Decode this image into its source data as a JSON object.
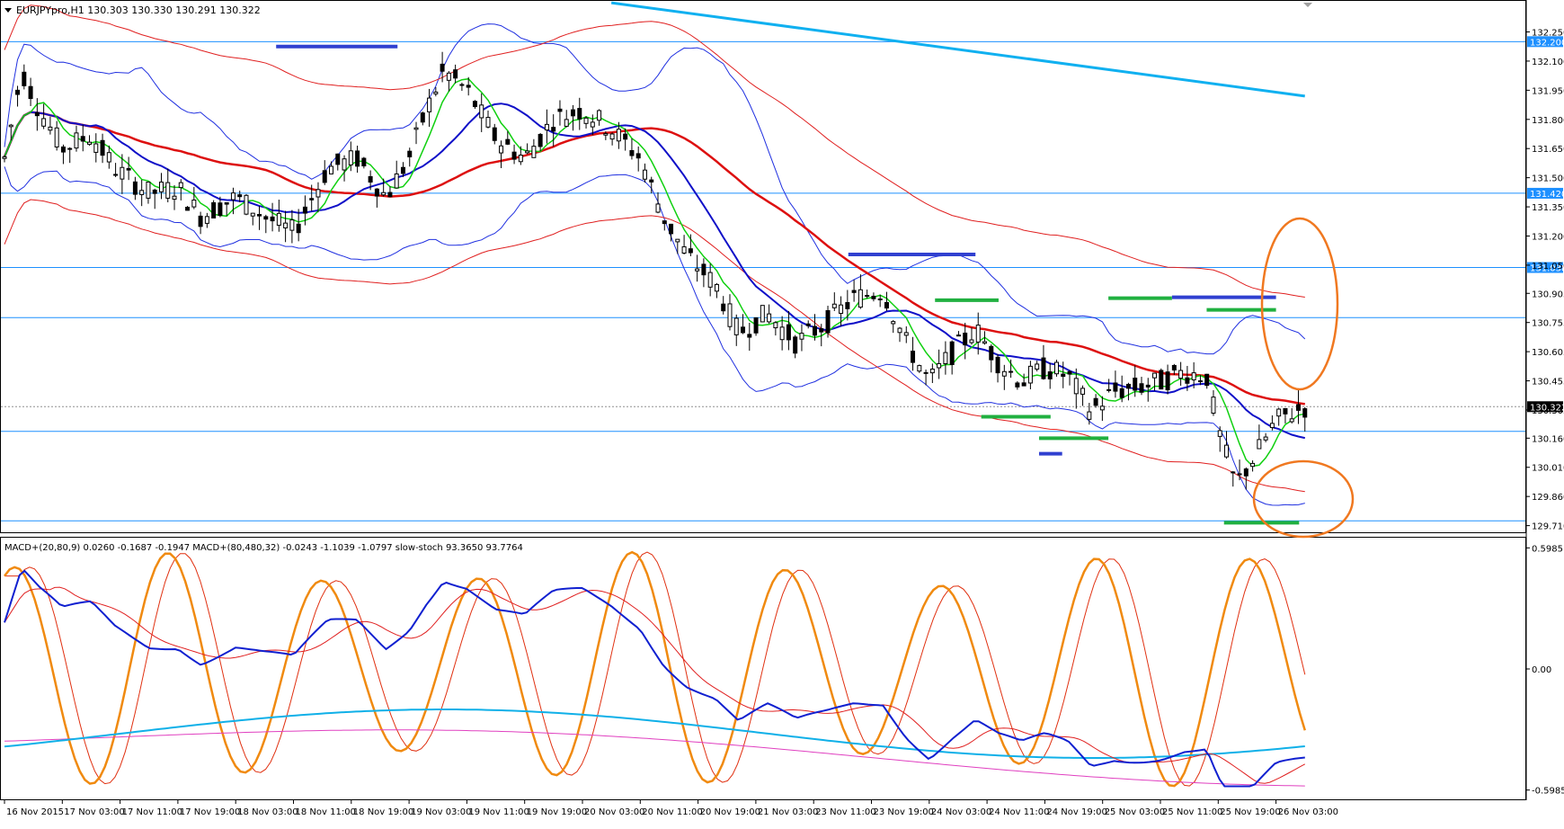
{
  "main_panel": {
    "header": "EURJPYpro,H1  130.303 130.330 130.291 130.322",
    "price_ticks": [
      "132.250",
      "132.100",
      "131.950",
      "131.800",
      "131.650",
      "131.500",
      "131.350",
      "131.200",
      "131.050",
      "130.905",
      "130.755",
      "130.605",
      "130.455",
      "130.305",
      "130.160",
      "130.010",
      "129.860",
      "129.710"
    ],
    "level_labels": [
      {
        "price": 132.2,
        "label": "132.200",
        "highlight": true
      },
      {
        "price": 131.42,
        "label": "131.420",
        "highlight": true
      },
      {
        "price": 131.038,
        "label": "131.038",
        "highlight": true
      },
      {
        "price": 130.78,
        "label": "",
        "highlight": false
      },
      {
        "price": 130.195,
        "label": "",
        "highlight": false
      },
      {
        "price": 129.735,
        "label": "",
        "highlight": false
      }
    ],
    "current_price": {
      "price": 130.322,
      "label": "130.322"
    }
  },
  "sub_panel": {
    "header": "MACD+(20,80,9) 0.0260 -0.1687 -0.1947   MACD+(80,480,32) -0.0243 -1.1039 -1.0797   slow-stoch 93.3650 93.7764",
    "ticks": [
      "0.5985",
      "0.00",
      "-0.5985"
    ]
  },
  "time_labels": [
    "16 Nov 2015",
    "17 Nov 03:00",
    "17 Nov 11:00",
    "17 Nov 19:00",
    "18 Nov 03:00",
    "18 Nov 11:00",
    "18 Nov 19:00",
    "19 Nov 03:00",
    "19 Nov 11:00",
    "19 Nov 19:00",
    "20 Nov 03:00",
    "20 Nov 11:00",
    "20 Nov 19:00",
    "21 Nov 03:00",
    "23 Nov 11:00",
    "23 Nov 19:00",
    "24 Nov 03:00",
    "24 Nov 11:00",
    "24 Nov 19:00",
    "25 Nov 03:00",
    "25 Nov 11:00",
    "25 Nov 19:00",
    "26 Nov 03:00"
  ],
  "colors": {
    "grid_border": "#000000",
    "level_line": "#1e90ff",
    "price_tag": "#1e90ff",
    "bollinger": "#2030e0",
    "envelope_red": "#e02020",
    "ma_green": "#10d010",
    "ma_blue": "#1010c8",
    "ma_red_slow": "#dd1010",
    "ma_cyan": "#10b0f0",
    "zone_blue": "#3040d0",
    "zone_green": "#20b040",
    "ellipse": "#f07820",
    "stoch_orange": "#f08a10",
    "stoch_red": "#e03010",
    "macd_blue": "#1020d0",
    "macd_red": "#e02020",
    "macd_cyan": "#10b0e8",
    "macd_magenta": "#e040c0"
  },
  "chart_data": {
    "type": "candlestick",
    "symbol": "EURJPYpro",
    "timeframe": "H1",
    "ylim": [
      129.685,
      132.405
    ],
    "sub_ylim": [
      -0.64,
      0.64
    ],
    "last_ohlc": {
      "open": 130.303,
      "high": 130.33,
      "low": 130.291,
      "close": 130.322
    },
    "blue_zones": [
      {
        "x": [
          4.7,
          6.8
        ],
        "price": 132.175
      },
      {
        "x": [
          14.6,
          16.8
        ],
        "price": 131.105
      },
      {
        "x": [
          20.2,
          22.0
        ],
        "price": 130.885
      },
      {
        "x": [
          17.9,
          18.3
        ],
        "price": 130.08
      }
    ],
    "green_zones": [
      {
        "x": [
          16.1,
          17.2
        ],
        "price": 130.87
      },
      {
        "x": [
          19.1,
          20.2
        ],
        "price": 130.88
      },
      {
        "x": [
          20.8,
          22.0
        ],
        "price": 130.82
      },
      {
        "x": [
          16.9,
          18.1
        ],
        "price": 130.27
      },
      {
        "x": [
          17.9,
          19.1
        ],
        "price": 130.16
      },
      {
        "x": [
          21.1,
          22.4
        ],
        "price": 129.725
      }
    ]
  }
}
